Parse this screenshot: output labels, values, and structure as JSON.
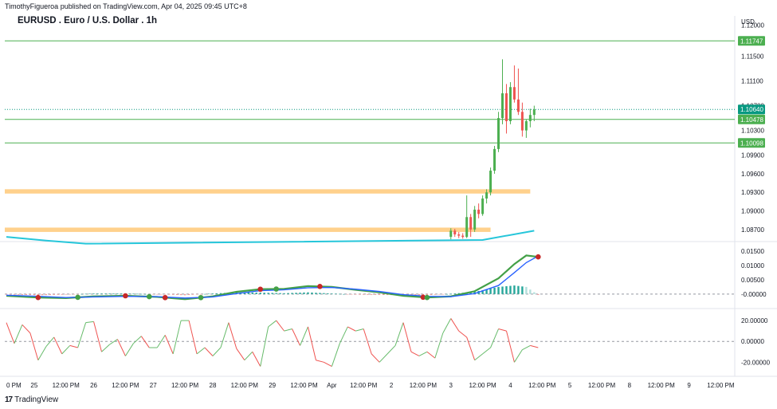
{
  "header": {
    "published": "TimothyFigueroa published on TradingView.com, Apr 04, 2025 09:45 UTC+8",
    "title": "EURUSD . Euro / U.S. Dollar . 1h"
  },
  "footer": {
    "brand": "TradingView",
    "logo": "17"
  },
  "colors": {
    "up": "#4caf50",
    "down": "#ef5350",
    "level": "#4caf50",
    "zone": "#ffcc80",
    "ma": "#26c6da",
    "macd_green": "#43a047",
    "macd_blue": "#2962ff",
    "hist_up": "#26a69a",
    "hist_up_light": "#b2dfdb",
    "hist_down": "#ef9a9a",
    "price_tag": "#089981",
    "level_tag": "#4caf50",
    "grid": "#f0f3fa",
    "axis_text": "#131722"
  },
  "chart_data": [
    {
      "type": "candlestick",
      "title": "EURUSD . Euro / U.S. Dollar . 1h",
      "currency": "USD",
      "ylim": [
        1.0853,
        1.1215
      ],
      "yticks": [
        "1.12000",
        "1.11500",
        "1.11100",
        "1.10700",
        "1.10300",
        "1.09900",
        "1.09600",
        "1.09300",
        "1.09000",
        "1.08700"
      ],
      "yticks_values": [
        1.12,
        1.115,
        1.111,
        1.107,
        1.103,
        1.099,
        1.096,
        1.093,
        1.09,
        1.087
      ],
      "levels": [
        {
          "price": 1.11747,
          "label": "1.11747"
        },
        {
          "price": 1.10478,
          "label": "1.10478"
        },
        {
          "price": 1.10098,
          "label": "1.10098"
        }
      ],
      "current_price": {
        "price": 1.1064,
        "label": "1.10640"
      },
      "zones": [
        {
          "low": 1.0928,
          "high": 1.0935,
          "x_start": 0,
          "x_end": 132
        },
        {
          "low": 1.0866,
          "high": 1.0873,
          "x_start": 0,
          "x_end": 122
        }
      ],
      "moving_average": [
        [
          0,
          1.0858
        ],
        [
          10,
          1.0852
        ],
        [
          20,
          1.0847
        ],
        [
          120,
          1.0853
        ],
        [
          133,
          1.0868
        ]
      ],
      "candles": [
        [
          112,
          1.0858,
          1.0872,
          1.0854,
          1.0868
        ],
        [
          113,
          1.0868,
          1.0871,
          1.0858,
          1.0862
        ],
        [
          114,
          1.0862,
          1.0866,
          1.0856,
          1.086
        ],
        [
          115,
          1.086,
          1.0864,
          1.0855,
          1.0858
        ],
        [
          116,
          1.0858,
          1.0925,
          1.0856,
          1.089
        ],
        [
          117,
          1.089,
          1.0895,
          1.0858,
          1.087
        ],
        [
          118,
          1.087,
          1.0908,
          1.0866,
          1.0902
        ],
        [
          119,
          1.0902,
          1.0912,
          1.0888,
          1.0895
        ],
        [
          120,
          1.0895,
          1.0925,
          1.0892,
          1.092
        ],
        [
          121,
          1.092,
          1.0935,
          1.0912,
          1.093
        ],
        [
          122,
          1.093,
          1.097,
          1.0925,
          1.0965
        ],
        [
          123,
          1.0965,
          1.1005,
          1.096,
          1.1
        ],
        [
          124,
          1.1,
          1.106,
          1.0995,
          1.105
        ],
        [
          125,
          1.105,
          1.1145,
          1.104,
          1.109
        ],
        [
          126,
          1.109,
          1.1105,
          1.1025,
          1.1045
        ],
        [
          127,
          1.1045,
          1.1108,
          1.104,
          1.11
        ],
        [
          128,
          1.11,
          1.1135,
          1.1075,
          1.108
        ],
        [
          129,
          1.108,
          1.113,
          1.1055,
          1.106
        ],
        [
          130,
          1.106,
          1.1075,
          1.102,
          1.103
        ],
        [
          131,
          1.103,
          1.1048,
          1.1018,
          1.1045
        ],
        [
          132,
          1.1045,
          1.1065,
          1.1035,
          1.1055
        ],
        [
          133,
          1.1055,
          1.107,
          1.1045,
          1.1064
        ]
      ]
    },
    {
      "type": "line",
      "name": "MACD",
      "ylim": [
        -0.0045,
        0.0178
      ],
      "yticks": [
        "0.01500",
        "0.01000",
        "0.00500",
        "-0.00000"
      ],
      "yticks_values": [
        0.015,
        0.01,
        0.005,
        0
      ],
      "series": [
        {
          "name": "fast",
          "color": "#43a047",
          "points": [
            [
              0,
              -0.0006
            ],
            [
              8,
              -0.0012
            ],
            [
              15,
              -0.0014
            ],
            [
              22,
              -0.0008
            ],
            [
              30,
              -0.0006
            ],
            [
              38,
              -0.001
            ],
            [
              45,
              -0.0018
            ],
            [
              52,
              -0.0008
            ],
            [
              58,
              0.0008
            ],
            [
              64,
              0.0017
            ],
            [
              70,
              0.0018
            ],
            [
              76,
              0.0028
            ],
            [
              82,
              0.0025
            ],
            [
              88,
              0.0015
            ],
            [
              94,
              0.0006
            ],
            [
              100,
              -0.0006
            ],
            [
              106,
              -0.0012
            ],
            [
              112,
              -0.0008
            ],
            [
              118,
              0.001
            ],
            [
              124,
              0.0055
            ],
            [
              128,
              0.0105
            ],
            [
              131,
              0.0135
            ],
            [
              134,
              0.013
            ]
          ]
        },
        {
          "name": "slow",
          "color": "#2962ff",
          "points": [
            [
              0,
              -0.0004
            ],
            [
              8,
              -0.0008
            ],
            [
              15,
              -0.0012
            ],
            [
              22,
              -0.001
            ],
            [
              30,
              -0.0008
            ],
            [
              38,
              -0.0009
            ],
            [
              45,
              -0.0014
            ],
            [
              52,
              -0.001
            ],
            [
              58,
              0.0002
            ],
            [
              64,
              0.0012
            ],
            [
              70,
              0.0015
            ],
            [
              76,
              0.0022
            ],
            [
              82,
              0.0023
            ],
            [
              88,
              0.0017
            ],
            [
              94,
              0.0009
            ],
            [
              100,
              -0.0002
            ],
            [
              106,
              -0.0008
            ],
            [
              112,
              -0.0009
            ],
            [
              118,
              0.0002
            ],
            [
              124,
              0.003
            ],
            [
              128,
              0.0075
            ],
            [
              131,
              0.011
            ],
            [
              134,
              0.0133
            ]
          ]
        }
      ],
      "cross_markers": [
        {
          "x": 8,
          "direction": "down"
        },
        {
          "x": 18,
          "direction": "up"
        },
        {
          "x": 30,
          "direction": "down"
        },
        {
          "x": 36,
          "direction": "up"
        },
        {
          "x": 40,
          "direction": "down"
        },
        {
          "x": 49,
          "direction": "up"
        },
        {
          "x": 64,
          "direction": "down"
        },
        {
          "x": 68,
          "direction": "up"
        },
        {
          "x": 79,
          "direction": "down"
        },
        {
          "x": 105,
          "direction": "down"
        },
        {
          "x": 106,
          "direction": "up"
        },
        {
          "x": 134,
          "direction": "down"
        }
      ]
    },
    {
      "type": "line",
      "name": "Oscillator",
      "ylim": [
        -32,
        30
      ],
      "yticks": [
        "20.00000",
        "0.00000",
        "-20.00000"
      ],
      "yticks_values": [
        20,
        0,
        -20
      ],
      "points": [
        [
          0,
          18
        ],
        [
          2,
          -2
        ],
        [
          4,
          16
        ],
        [
          6,
          8
        ],
        [
          8,
          -18
        ],
        [
          10,
          -5
        ],
        [
          12,
          4
        ],
        [
          14,
          -12
        ],
        [
          16,
          -4
        ],
        [
          18,
          -6
        ],
        [
          20,
          18
        ],
        [
          22,
          19
        ],
        [
          24,
          -10
        ],
        [
          26,
          -3
        ],
        [
          28,
          2
        ],
        [
          30,
          -14
        ],
        [
          32,
          -2
        ],
        [
          34,
          5
        ],
        [
          36,
          -6
        ],
        [
          38,
          -6
        ],
        [
          40,
          6
        ],
        [
          42,
          -12
        ],
        [
          44,
          20
        ],
        [
          46,
          20
        ],
        [
          48,
          -12
        ],
        [
          50,
          -6
        ],
        [
          52,
          -14
        ],
        [
          54,
          -6
        ],
        [
          56,
          18
        ],
        [
          58,
          -7
        ],
        [
          60,
          -18
        ],
        [
          62,
          -10
        ],
        [
          64,
          -24
        ],
        [
          66,
          14
        ],
        [
          68,
          20
        ],
        [
          70,
          10
        ],
        [
          72,
          12
        ],
        [
          74,
          -4
        ],
        [
          76,
          14
        ],
        [
          78,
          -18
        ],
        [
          80,
          -20
        ],
        [
          82,
          -24
        ],
        [
          84,
          -2
        ],
        [
          86,
          14
        ],
        [
          88,
          10
        ],
        [
          90,
          12
        ],
        [
          92,
          -12
        ],
        [
          94,
          -20
        ],
        [
          96,
          -12
        ],
        [
          98,
          -4
        ],
        [
          100,
          18
        ],
        [
          102,
          -10
        ],
        [
          104,
          -14
        ],
        [
          106,
          -10
        ],
        [
          108,
          -16
        ],
        [
          110,
          8
        ],
        [
          112,
          22
        ],
        [
          114,
          10
        ],
        [
          116,
          4
        ],
        [
          118,
          -18
        ],
        [
          120,
          -12
        ],
        [
          122,
          -6
        ],
        [
          124,
          12
        ],
        [
          126,
          10
        ],
        [
          128,
          -20
        ],
        [
          130,
          -8
        ],
        [
          132,
          -4
        ],
        [
          134,
          -6
        ]
      ]
    },
    {
      "type": "axis",
      "name": "time-axis",
      "x_ticks": [
        {
          "x": 0,
          "label": "0 PM"
        },
        {
          "x": 7,
          "label": "25"
        },
        {
          "x": 15,
          "label": "12:00 PM"
        },
        {
          "x": 22,
          "label": "26"
        },
        {
          "x": 30,
          "label": "12:00 PM"
        },
        {
          "x": 37,
          "label": "27"
        },
        {
          "x": 45,
          "label": "12:00 PM"
        },
        {
          "x": 52,
          "label": "28"
        },
        {
          "x": 60,
          "label": "12:00 PM"
        },
        {
          "x": 67,
          "label": "29"
        },
        {
          "x": 75,
          "label": "12:00 PM"
        },
        {
          "x": 82,
          "label": "Apr"
        },
        {
          "x": 90,
          "label": "12:00 PM"
        },
        {
          "x": 97,
          "label": "2"
        },
        {
          "x": 105,
          "label": "12:00 PM"
        },
        {
          "x": 112,
          "label": "3"
        },
        {
          "x": 120,
          "label": "12:00 PM"
        },
        {
          "x": 127,
          "label": "4"
        },
        {
          "x": 135,
          "label": "12:00 PM"
        },
        {
          "x": 142,
          "label": "5"
        },
        {
          "x": 150,
          "label": "12:00 PM"
        },
        {
          "x": 157,
          "label": "8"
        },
        {
          "x": 165,
          "label": "12:00 PM"
        },
        {
          "x": 172,
          "label": "9"
        },
        {
          "x": 180,
          "label": "12:00 PM"
        }
      ]
    }
  ]
}
